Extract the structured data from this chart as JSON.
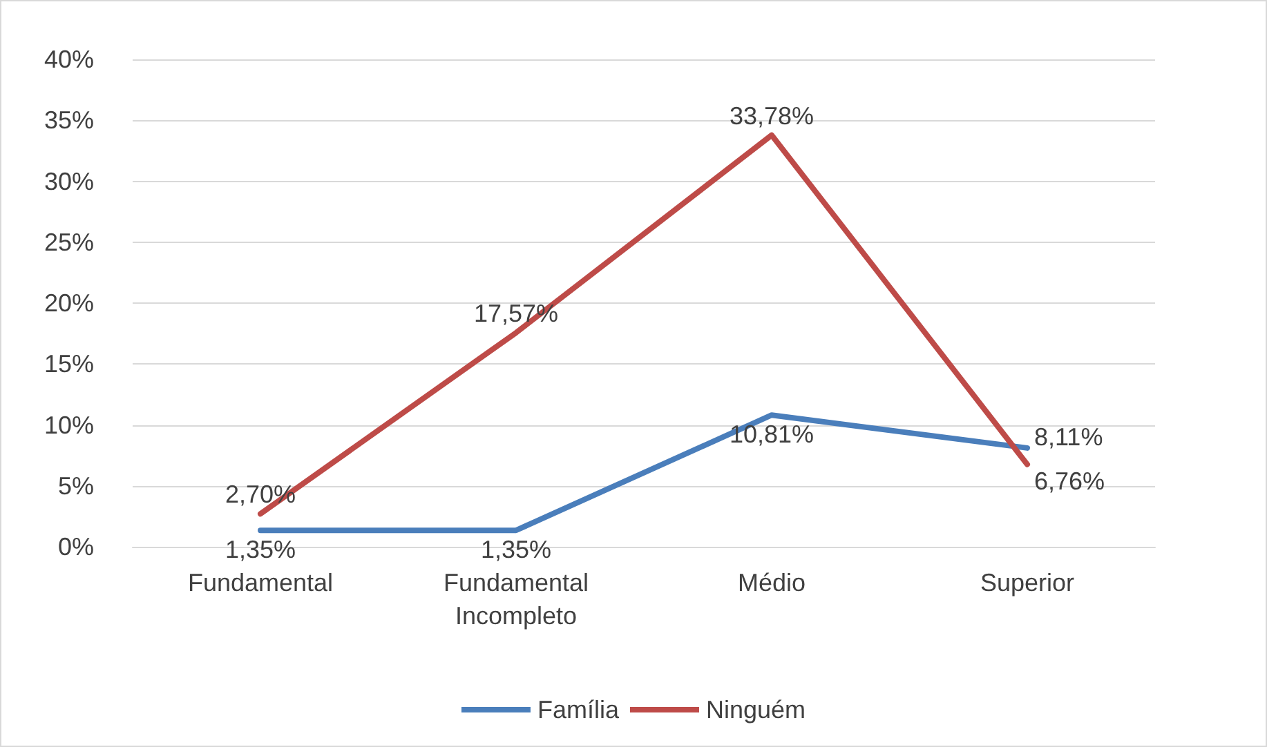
{
  "chart_data": {
    "type": "line",
    "categories": [
      "Fundamental",
      "Fundamental\nIncompleto",
      "Médio",
      "Superior"
    ],
    "series": [
      {
        "name": "Família",
        "color": "#4a7ebb",
        "values": [
          1.35,
          1.35,
          10.81,
          8.11
        ],
        "value_labels": [
          "1,35%",
          "1,35%",
          "10,81%",
          "8,11%"
        ]
      },
      {
        "name": "Ninguém",
        "color": "#be4b48",
        "values": [
          2.7,
          17.57,
          33.78,
          6.76
        ],
        "value_labels": [
          "2,70%",
          "17,57%",
          "33,78%",
          "6,76%"
        ]
      }
    ],
    "ylim": [
      0,
      40
    ],
    "yticks": [
      {
        "value": 0,
        "label": "0%"
      },
      {
        "value": 5,
        "label": "5%"
      },
      {
        "value": 10,
        "label": "10%"
      },
      {
        "value": 15,
        "label": "15%"
      },
      {
        "value": 20,
        "label": "20%"
      },
      {
        "value": 25,
        "label": "25%"
      },
      {
        "value": 30,
        "label": "30%"
      },
      {
        "value": 35,
        "label": "35%"
      },
      {
        "value": 40,
        "label": "40%"
      }
    ],
    "grid": "y",
    "legend": "bottom",
    "marker": "none",
    "line_style": "solid"
  }
}
